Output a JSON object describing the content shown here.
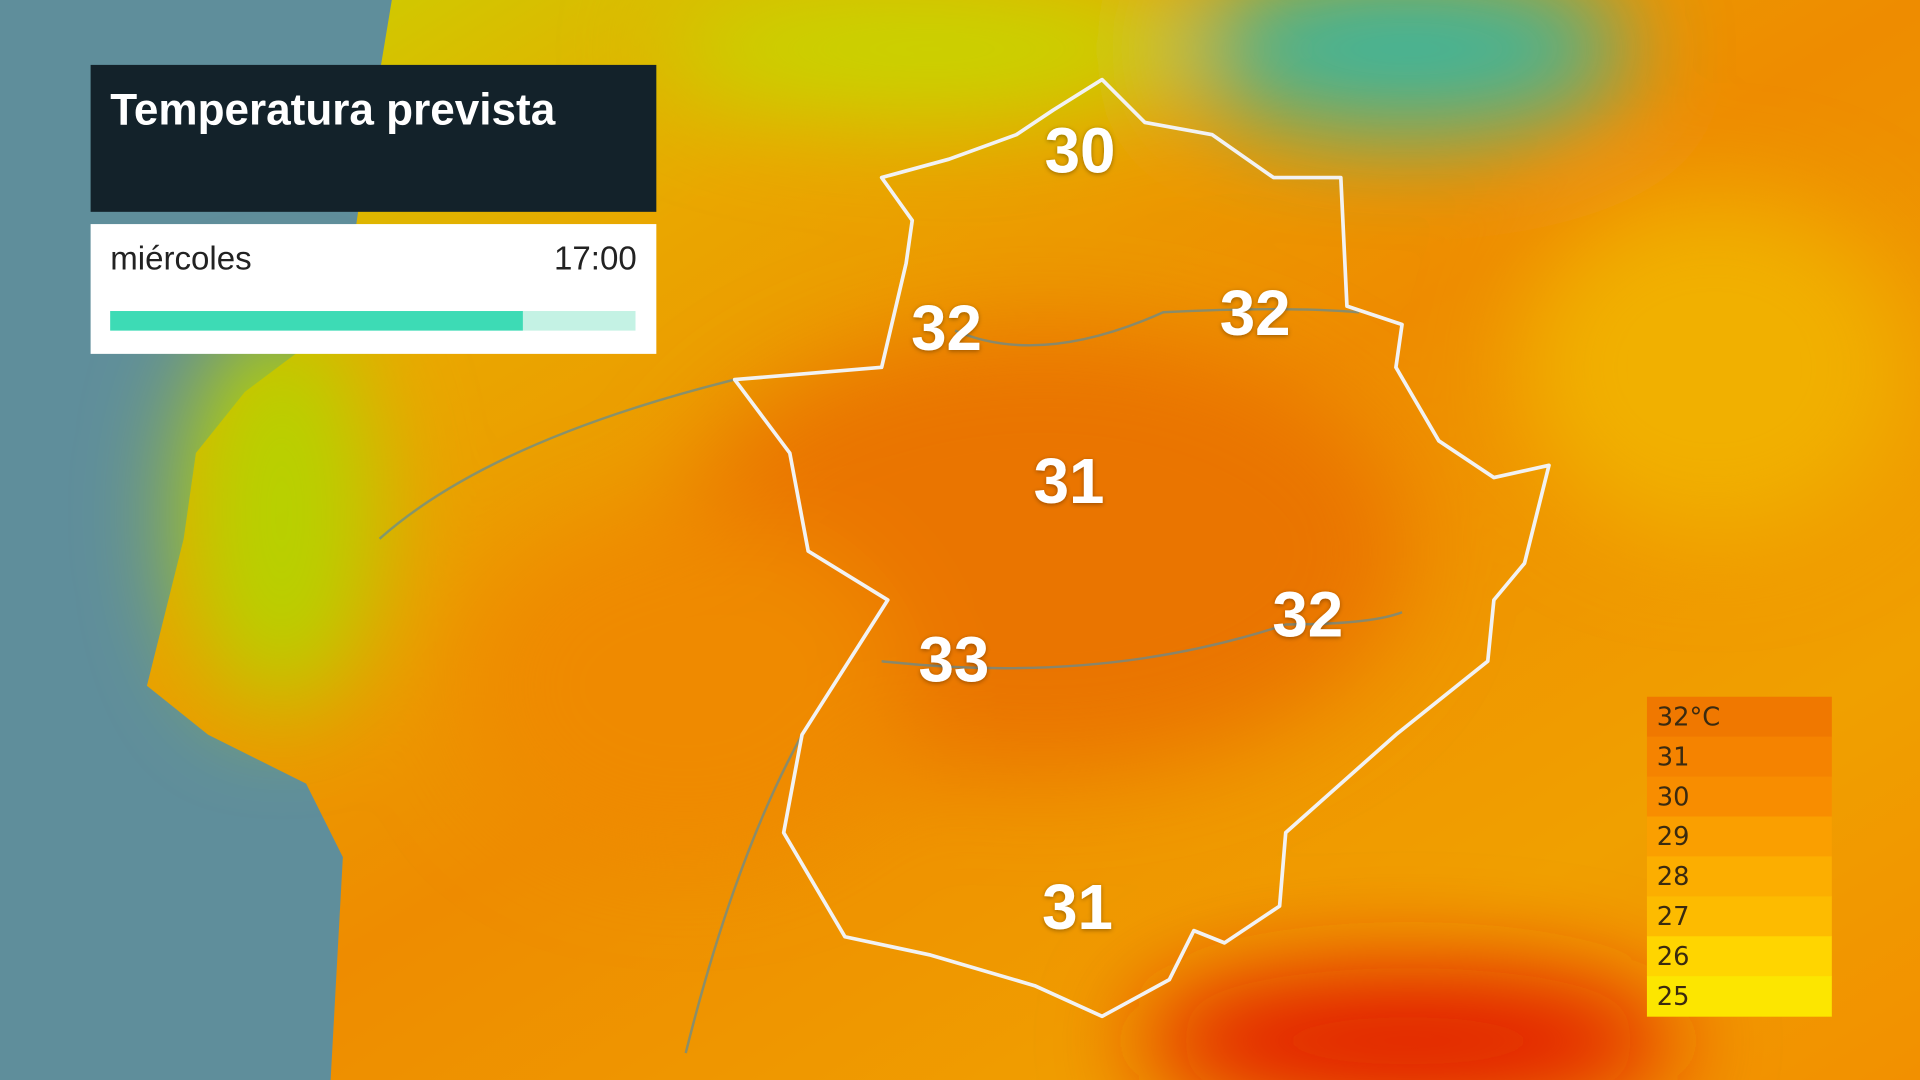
{
  "header": {
    "title": "Temperatura prevista",
    "day": "miércoles",
    "time": "17:00"
  },
  "temperatures": [
    30,
    32,
    32,
    31,
    33,
    32,
    31
  ],
  "legend": [
    {
      "label": "32°C",
      "color": "#f07800"
    },
    {
      "label": "31",
      "color": "#f58300"
    },
    {
      "label": "30",
      "color": "#f88d00"
    },
    {
      "label": "29",
      "color": "#fa9f00"
    },
    {
      "label": "28",
      "color": "#fcae00"
    },
    {
      "label": "27",
      "color": "#fdbb00"
    },
    {
      "label": "26",
      "color": "#ffd500"
    },
    {
      "label": "25",
      "color": "#fce600"
    }
  ]
}
